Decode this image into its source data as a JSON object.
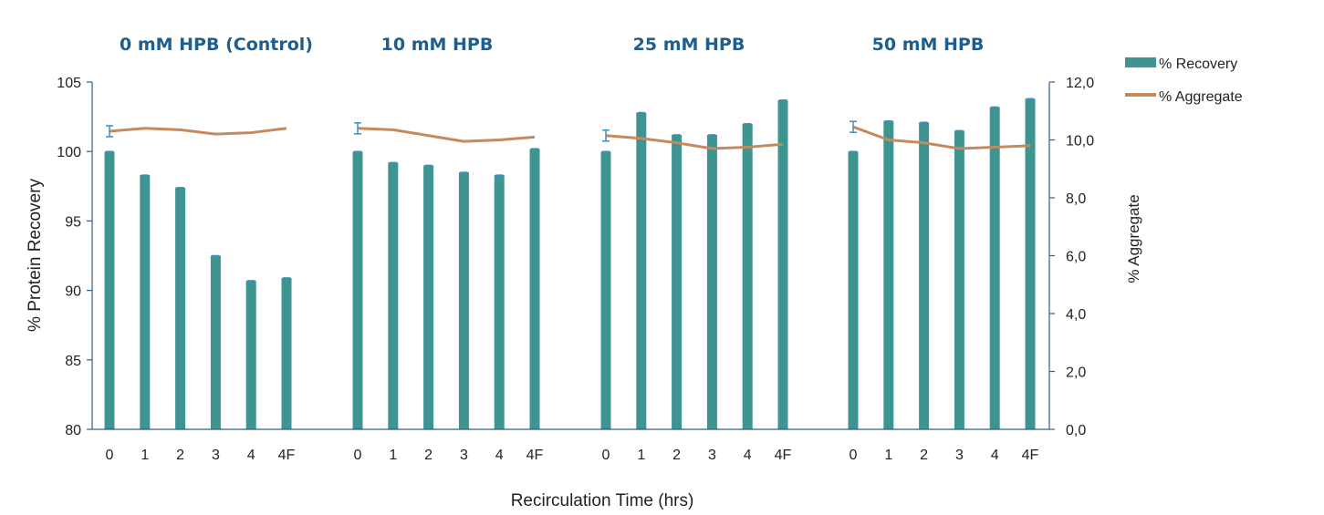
{
  "chart_data": {
    "type": "bar",
    "ylabel": "% Protein Recovery",
    "y2label": "% Aggregate",
    "xlabel": "Recirculation Time (hrs)",
    "ylim": [
      80,
      105
    ],
    "y_ticks": [
      "80",
      "85",
      "90",
      "95",
      "100",
      "105"
    ],
    "y2lim": [
      0,
      12
    ],
    "y2_ticks": [
      "0,0",
      "2,0",
      "4,0",
      "6,0",
      "8,0",
      "10,0",
      "12,0"
    ],
    "legend": {
      "placement": "top-right"
    },
    "colors": {
      "recovery": "#3e9490",
      "aggregate": "#c48a5e",
      "error_bar": "#3b8fc4",
      "title": "#1f5e8c",
      "axis": "#2e5f8a"
    },
    "groups": [
      {
        "title": "0 mM HPB (Control)",
        "categories": [
          "0",
          "1",
          "2",
          "3",
          "4",
          "4F"
        ],
        "recovery": [
          100.0,
          98.3,
          97.4,
          92.5,
          90.7,
          90.9
        ],
        "aggregate": [
          10.3,
          10.4,
          10.35,
          10.2,
          10.25,
          10.4
        ]
      },
      {
        "title": "10 mM  HPB",
        "categories": [
          "0",
          "1",
          "2",
          "3",
          "4",
          "4F"
        ],
        "recovery": [
          100.0,
          99.2,
          99.0,
          98.5,
          98.3,
          100.2
        ],
        "aggregate": [
          10.4,
          10.35,
          10.15,
          9.95,
          10.0,
          10.1
        ]
      },
      {
        "title": "25 mM HPB",
        "categories": [
          "0",
          "1",
          "2",
          "3",
          "4",
          "4F"
        ],
        "recovery": [
          100.0,
          102.8,
          101.2,
          101.2,
          102.0,
          103.7
        ],
        "aggregate": [
          10.15,
          10.05,
          9.9,
          9.7,
          9.75,
          9.85
        ]
      },
      {
        "title": "50 mM HPB",
        "categories": [
          "0",
          "1",
          "2",
          "3",
          "4",
          "4F"
        ],
        "recovery": [
          100.0,
          102.2,
          102.1,
          101.5,
          103.2,
          103.8
        ],
        "aggregate": [
          10.45,
          10.0,
          9.9,
          9.7,
          9.75,
          9.8
        ]
      }
    ],
    "series": [
      {
        "name": "% Recovery",
        "type": "bar"
      },
      {
        "name": "% Aggregate",
        "type": "line"
      }
    ]
  }
}
